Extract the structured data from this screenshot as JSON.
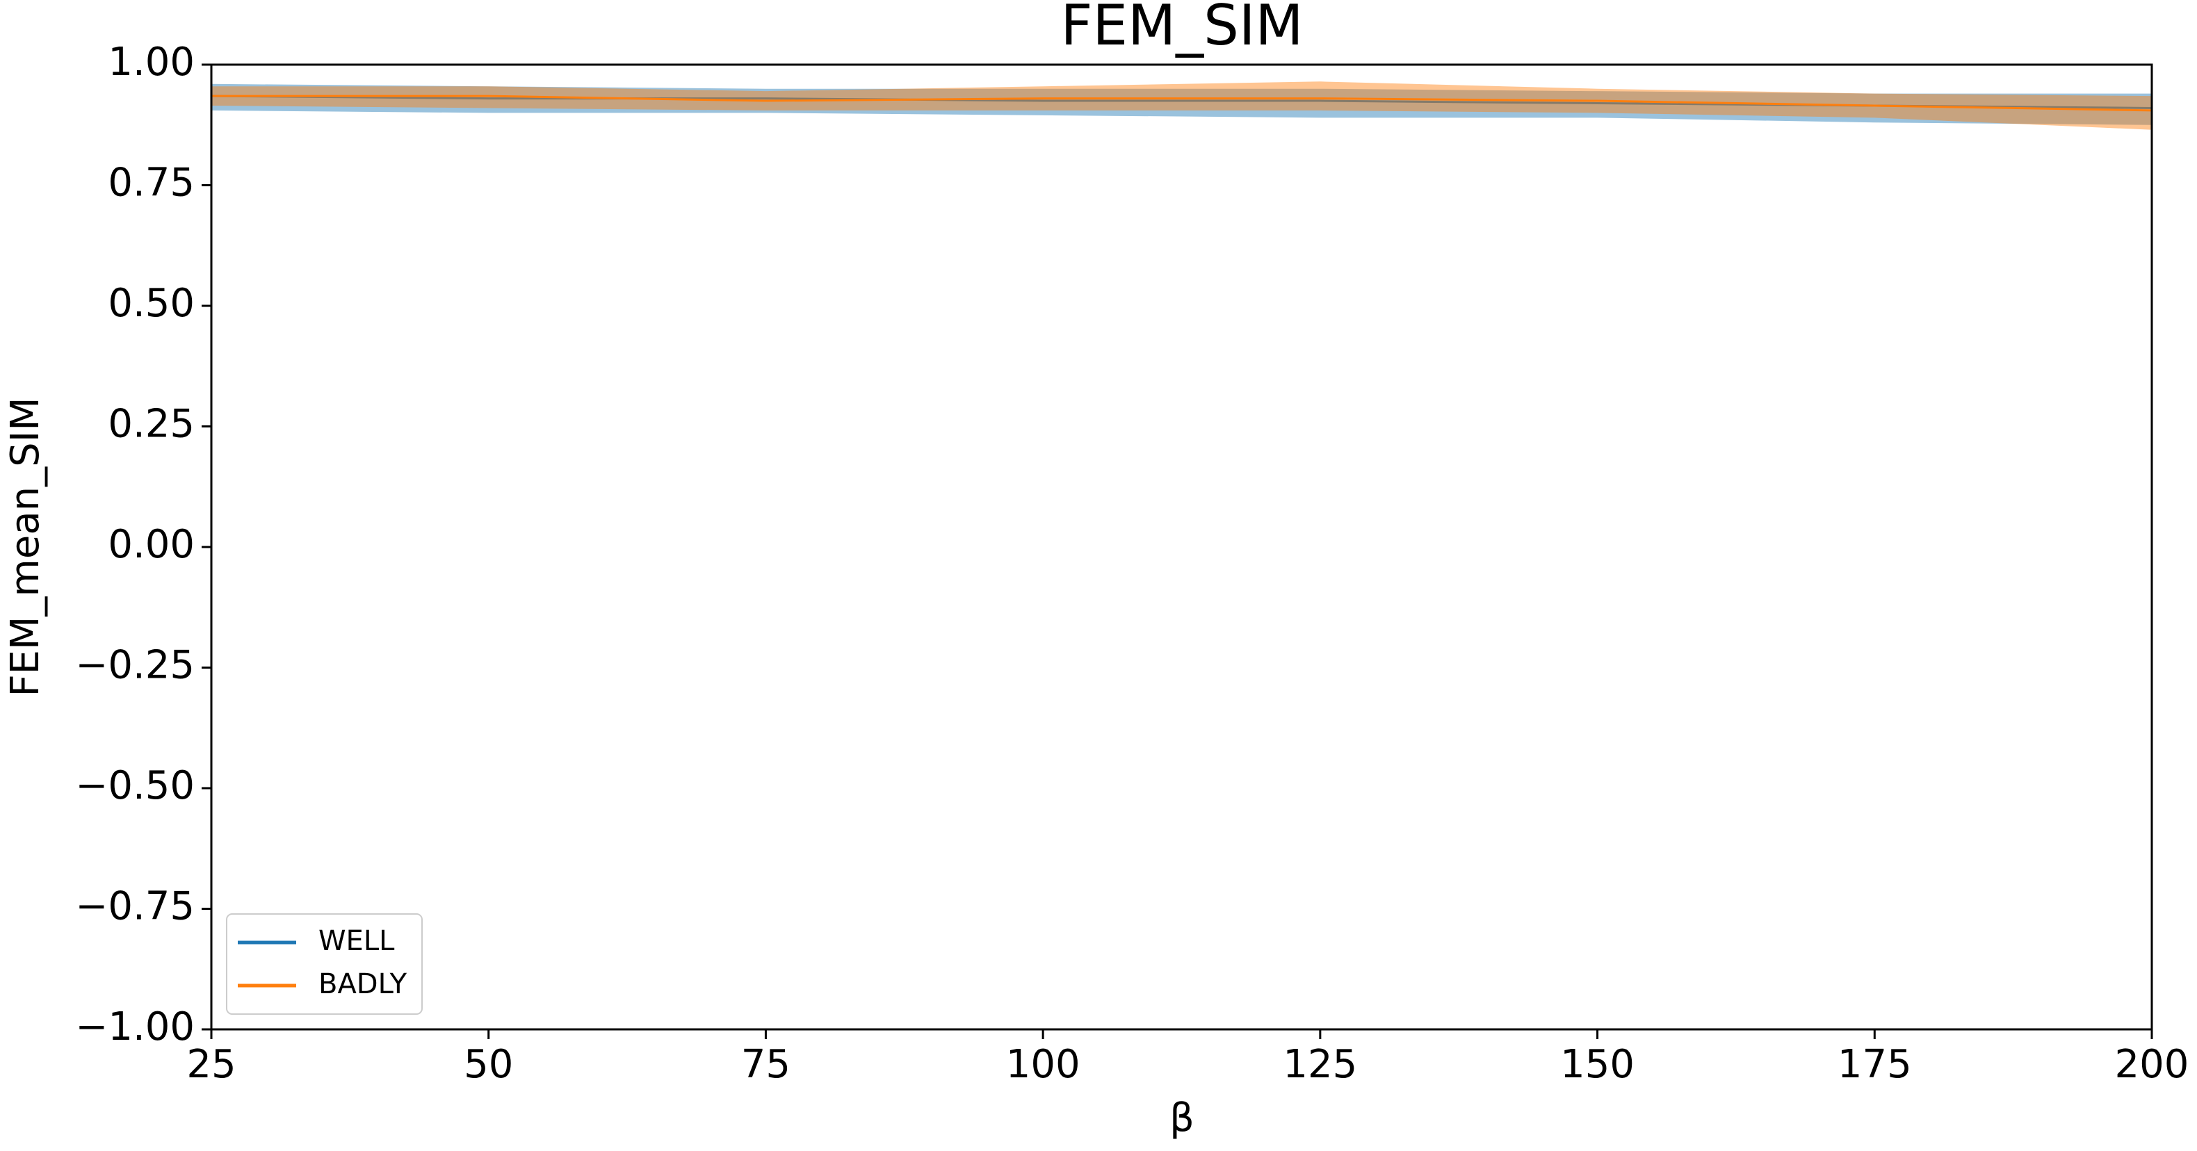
{
  "chart_data": {
    "type": "line",
    "title": "FEM_SIM",
    "x_label": "β",
    "y_label": "FEM_mean_SIM",
    "x": [
      25,
      50,
      75,
      100,
      125,
      150,
      175,
      200
    ],
    "series": [
      {
        "name": "WELL",
        "color": "#1f77b4",
        "values": [
          0.935,
          0.93,
          0.93,
          0.925,
          0.925,
          0.92,
          0.915,
          0.91
        ],
        "lower": [
          0.905,
          0.9,
          0.9,
          0.895,
          0.89,
          0.89,
          0.88,
          0.875
        ],
        "upper": [
          0.96,
          0.955,
          0.95,
          0.95,
          0.95,
          0.945,
          0.94,
          0.94
        ]
      },
      {
        "name": "BADLY",
        "color": "#ff7f0e",
        "values": [
          0.935,
          0.935,
          0.925,
          0.93,
          0.93,
          0.925,
          0.915,
          0.905
        ],
        "lower": [
          0.915,
          0.91,
          0.905,
          0.905,
          0.905,
          0.9,
          0.89,
          0.865
        ],
        "upper": [
          0.955,
          0.955,
          0.945,
          0.955,
          0.965,
          0.95,
          0.94,
          0.935
        ]
      }
    ],
    "xlim": [
      25,
      200
    ],
    "xticks": [
      25,
      50,
      75,
      100,
      125,
      150,
      175,
      200
    ],
    "ylim": [
      -1,
      1
    ],
    "yticks": [
      {
        "value": -1,
        "label": "−1.00"
      },
      {
        "value": -0.75,
        "label": "−0.75"
      },
      {
        "value": -0.5,
        "label": "−0.50"
      },
      {
        "value": -0.25,
        "label": "−0.25"
      },
      {
        "value": 0,
        "label": "0.00"
      },
      {
        "value": 0.25,
        "label": "0.25"
      },
      {
        "value": 0.5,
        "label": "0.50"
      },
      {
        "value": 0.75,
        "label": "0.75"
      },
      {
        "value": 1,
        "label": "1.00"
      }
    ],
    "legend": "lower left"
  }
}
